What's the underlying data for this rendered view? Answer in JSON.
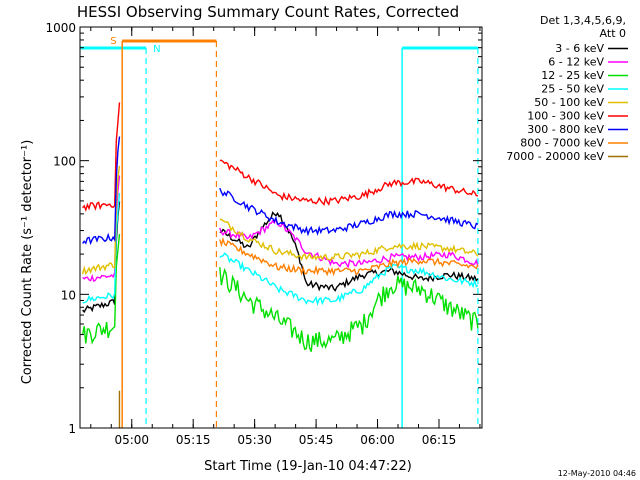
{
  "chart_data": {
    "type": "line",
    "title": "HESSI Observing Summary Count Rates, Corrected",
    "xlabel": "Start Time (19-Jan-10 04:47:22)",
    "ylabel": "Corrected Count Rate (s⁻¹ detector⁻¹)",
    "yscale": "log",
    "ylim": [
      1,
      1000
    ],
    "xlim": [
      "04:47:22",
      "06:25:30"
    ],
    "x_ticks": [
      "05:00",
      "05:15",
      "05:30",
      "05:45",
      "06:00",
      "06:15"
    ],
    "y_ticks": [
      "1",
      "10",
      "100",
      "1000"
    ],
    "legend_header": [
      "Det 1,3,4,5,6,9,",
      "Att 0"
    ],
    "legend_position": "right",
    "footer": "12-May-2010 04:46",
    "markers": [
      {
        "label": "S",
        "color": "#ff8000"
      },
      {
        "label": "N",
        "color": "#00ffff"
      }
    ],
    "series": [
      {
        "name": "3 - 6 keV",
        "color": "#000000",
        "pre": [
          7.5,
          9
        ],
        "post": [
          30,
          22,
          42,
          12,
          11,
          14,
          15,
          13,
          14,
          13
        ]
      },
      {
        "name": "6 - 12 keV",
        "color": "#ff00ff",
        "pre": [
          13,
          14
        ],
        "post": [
          30,
          26,
          35,
          21,
          17,
          17,
          19,
          19,
          20,
          17
        ]
      },
      {
        "name": "12 - 25 keV",
        "color": "#00e000",
        "pre": [
          5,
          6
        ],
        "post": [
          14,
          9,
          6.5,
          4.5,
          4.5,
          6,
          12,
          11,
          8,
          6
        ]
      },
      {
        "name": "25 - 50 keV",
        "color": "#00ffff",
        "pre": [
          9,
          10
        ],
        "post": [
          20,
          15,
          11,
          9,
          9,
          11,
          16,
          15,
          13,
          12
        ]
      },
      {
        "name": "50 - 100 keV",
        "color": "#e0c000",
        "pre": [
          15,
          17
        ],
        "post": [
          36,
          26,
          21,
          19,
          19,
          20,
          23,
          23,
          22,
          20
        ]
      },
      {
        "name": "100 - 300 keV",
        "color": "#ff0000",
        "pre": [
          45,
          48
        ],
        "post": [
          100,
          75,
          55,
          50,
          50,
          55,
          68,
          70,
          62,
          55
        ]
      },
      {
        "name": "300 - 800 keV",
        "color": "#0000ff",
        "pre": [
          25,
          27
        ],
        "post": [
          60,
          45,
          35,
          30,
          30,
          34,
          40,
          40,
          36,
          32
        ]
      },
      {
        "name": "800 - 7000 keV",
        "color": "#ff8000",
        "pre": [],
        "post": [
          25,
          20,
          16,
          15,
          15,
          15,
          17,
          18,
          17,
          16
        ]
      },
      {
        "name": "7000 - 20000 keV",
        "color": "#a07000",
        "pre": [],
        "post": []
      }
    ]
  }
}
